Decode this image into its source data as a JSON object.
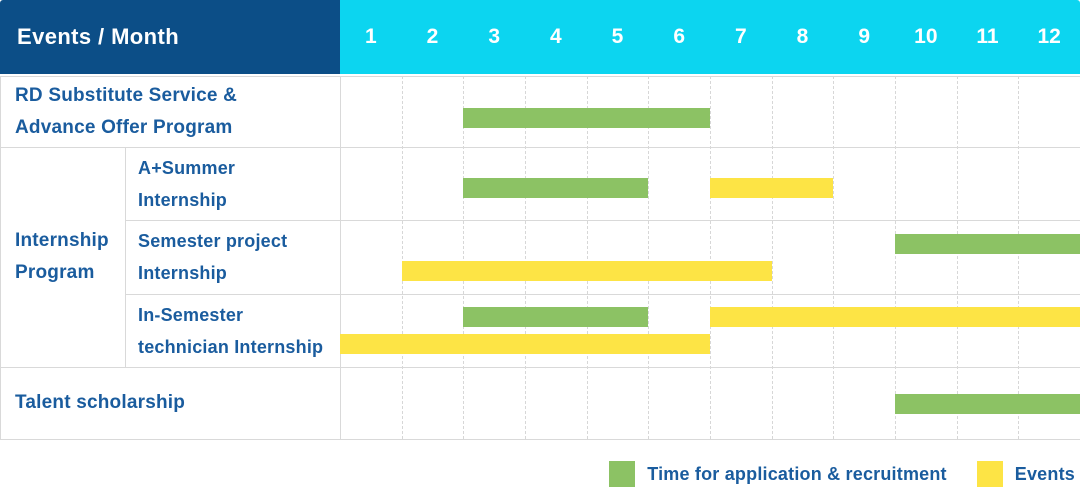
{
  "chart_data": {
    "type": "bar",
    "subtype": "gantt-schedule",
    "title": "Events / Month",
    "xlabel": "Month",
    "x_categories": [
      "1",
      "2",
      "3",
      "4",
      "5",
      "6",
      "7",
      "8",
      "9",
      "10",
      "11",
      "12"
    ],
    "x_range": [
      1,
      12
    ],
    "grid": "on",
    "legend_position": "bottom-right",
    "legend": [
      {
        "series": "recruitment",
        "label": "Time for application & recruitment"
      },
      {
        "series": "events",
        "label": "Events"
      }
    ],
    "series_colors": {
      "recruitment": "#8CC264",
      "events": "#FDE445"
    },
    "group": {
      "label_lines": [
        "Internship",
        "Program"
      ],
      "row_ids": [
        "a-plus-summer-internship",
        "semester-project-internship",
        "in-semester-technician-internship"
      ]
    },
    "rows": [
      {
        "id": "rd-substitute-service",
        "label_lines": [
          "RD Substitute Service &",
          "Advance Offer Program"
        ],
        "indent": false,
        "bars": [
          {
            "series": "recruitment",
            "start_month": 3,
            "end_month": 6,
            "lane": 0
          }
        ]
      },
      {
        "id": "a-plus-summer-internship",
        "label_lines": [
          "A+Summer",
          "Internship"
        ],
        "indent": true,
        "bars": [
          {
            "series": "recruitment",
            "start_month": 3,
            "end_month": 5,
            "lane": 0
          },
          {
            "series": "events",
            "start_month": 7,
            "end_month": 8,
            "lane": 0
          }
        ]
      },
      {
        "id": "semester-project-internship",
        "label_lines": [
          "Semester project",
          "Internship"
        ],
        "indent": true,
        "bars": [
          {
            "series": "recruitment",
            "start_month": 10,
            "end_month": 12,
            "lane": 0
          },
          {
            "series": "events",
            "start_month": 2,
            "end_month": 7,
            "lane": 1
          }
        ]
      },
      {
        "id": "in-semester-technician-internship",
        "label_lines": [
          "In-Semester",
          "technician Internship"
        ],
        "indent": true,
        "bars": [
          {
            "series": "recruitment",
            "start_month": 3,
            "end_month": 5,
            "lane": 0
          },
          {
            "series": "events",
            "start_month": 7,
            "end_month": 12,
            "lane": 0
          },
          {
            "series": "events",
            "start_month": 1,
            "end_month": 6,
            "lane": 1
          }
        ]
      },
      {
        "id": "talent-scholarship",
        "label_lines": [
          "Talent scholarship"
        ],
        "indent": false,
        "bars": [
          {
            "series": "recruitment",
            "start_month": 10,
            "end_month": 12,
            "lane": 0
          }
        ]
      }
    ],
    "colors": {
      "header_bg": "#0C4E87",
      "months_bg": "#0CD5F0",
      "label_text": "#1A5C9E",
      "grid_line": "#D9D9D9",
      "recruitment_green": "#8CC264",
      "events_yellow": "#FDE445"
    }
  }
}
